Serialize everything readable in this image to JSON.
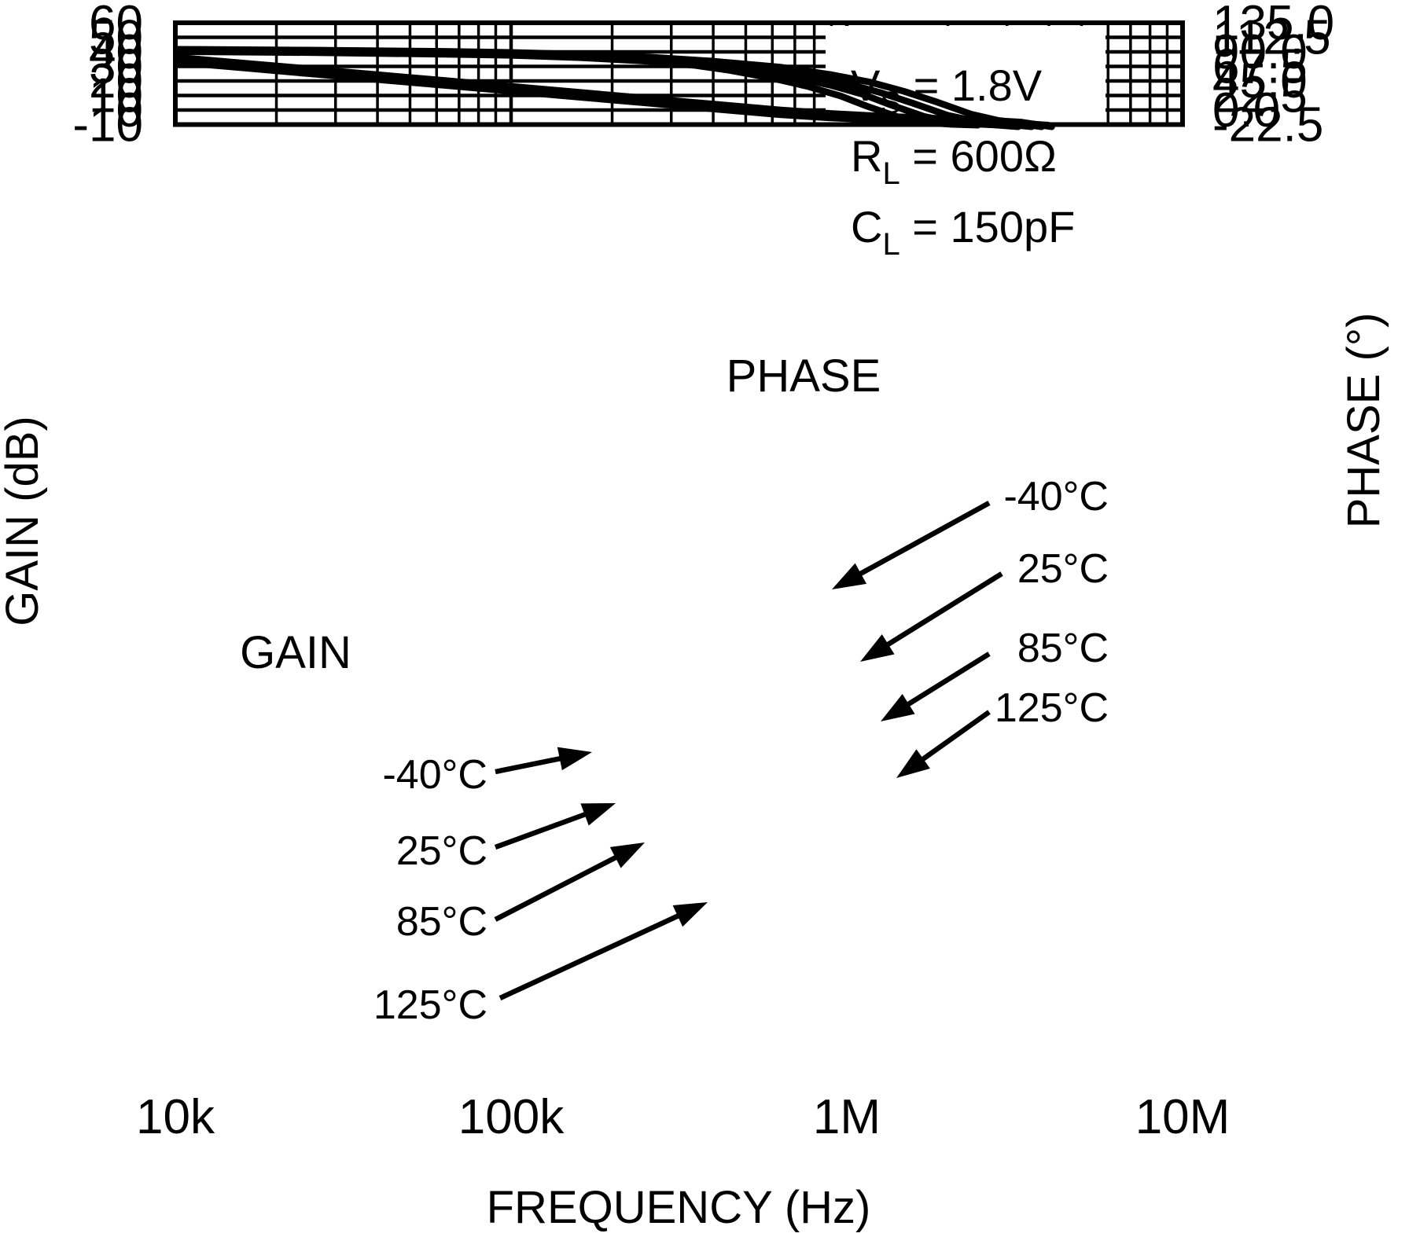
{
  "chart_data": {
    "type": "line",
    "xlabel": "FREQUENCY (Hz)",
    "ylabel_left": "GAIN (dB)",
    "ylabel_right": "PHASE (°)",
    "x_scale": "log",
    "x_range_hz": [
      10000,
      10000000
    ],
    "x_tick_labels": [
      "10k",
      "100k",
      "1M",
      "10M"
    ],
    "x_tick_log10": [
      4,
      5,
      6,
      7
    ],
    "y_left_range": [
      -10,
      60
    ],
    "y_left_ticks": [
      60,
      50,
      40,
      30,
      20,
      10,
      0,
      -10
    ],
    "y_right_range": [
      -22.5,
      135.0
    ],
    "y_right_tick_labels": [
      "135.0",
      "112.5",
      "90.0",
      "67.5",
      "45.0",
      "22.5",
      "0.0",
      "-22.5"
    ],
    "grid": "log-minor-and-major",
    "units": {
      "x": "log10(Hz)",
      "gain": "dB",
      "phase": "deg"
    },
    "series": [
      {
        "name": "GAIN -40°C",
        "axis": "gain",
        "temp": "-40°C",
        "points": [
          [
            4.0,
            36.3
          ],
          [
            4.2,
            32.3
          ],
          [
            4.4,
            28.3
          ],
          [
            4.6,
            24.3
          ],
          [
            4.8,
            20.3
          ],
          [
            5.0,
            16.3
          ],
          [
            5.2,
            12.2
          ],
          [
            5.4,
            8.2
          ],
          [
            5.6,
            4.1
          ],
          [
            5.8,
            0.1
          ],
          [
            5.95,
            -2.4
          ],
          [
            6.1,
            -4.2
          ],
          [
            6.25,
            -5.5
          ],
          [
            6.4,
            -6.8
          ],
          [
            6.52,
            -8.3
          ],
          [
            6.61,
            -11.5
          ]
        ]
      },
      {
        "name": "GAIN 25°C",
        "axis": "gain",
        "temp": "25°C",
        "points": [
          [
            4.0,
            35.3
          ],
          [
            4.2,
            31.3
          ],
          [
            4.4,
            27.3
          ],
          [
            4.6,
            23.3
          ],
          [
            4.8,
            19.3
          ],
          [
            5.0,
            15.3
          ],
          [
            5.2,
            11.2
          ],
          [
            5.4,
            7.2
          ],
          [
            5.6,
            3.1
          ],
          [
            5.8,
            -0.9
          ],
          [
            5.95,
            -3.3
          ],
          [
            6.1,
            -5.0
          ],
          [
            6.25,
            -6.2
          ],
          [
            6.4,
            -7.5
          ],
          [
            6.5,
            -9.0
          ],
          [
            6.58,
            -11.5
          ]
        ]
      },
      {
        "name": "GAIN 85°C",
        "axis": "gain",
        "temp": "85°C",
        "points": [
          [
            4.0,
            34.2
          ],
          [
            4.2,
            30.2
          ],
          [
            4.4,
            26.2
          ],
          [
            4.6,
            22.2
          ],
          [
            4.8,
            18.2
          ],
          [
            5.0,
            14.2
          ],
          [
            5.2,
            10.1
          ],
          [
            5.4,
            6.1
          ],
          [
            5.6,
            2.0
          ],
          [
            5.8,
            -2.0
          ],
          [
            5.95,
            -4.3
          ],
          [
            6.1,
            -5.9
          ],
          [
            6.25,
            -7.0
          ],
          [
            6.38,
            -8.2
          ],
          [
            6.47,
            -9.6
          ],
          [
            6.55,
            -11.5
          ]
        ]
      },
      {
        "name": "GAIN 125°C",
        "axis": "gain",
        "temp": "125°C",
        "points": [
          [
            4.0,
            33.0
          ],
          [
            4.2,
            29.0
          ],
          [
            4.4,
            25.0
          ],
          [
            4.6,
            21.0
          ],
          [
            4.8,
            17.0
          ],
          [
            5.0,
            13.0
          ],
          [
            5.2,
            8.9
          ],
          [
            5.4,
            4.9
          ],
          [
            5.6,
            0.8
          ],
          [
            5.8,
            -3.2
          ],
          [
            5.95,
            -5.4
          ],
          [
            6.1,
            -6.9
          ],
          [
            6.25,
            -7.9
          ],
          [
            6.35,
            -8.9
          ],
          [
            6.44,
            -10.2
          ],
          [
            6.51,
            -11.5
          ]
        ]
      },
      {
        "name": "PHASE -40°C",
        "axis": "phase",
        "temp": "-40°C",
        "points": [
          [
            4.0,
            94.0
          ],
          [
            4.4,
            92.7
          ],
          [
            4.8,
            90.7
          ],
          [
            5.0,
            89.2
          ],
          [
            5.2,
            86.4
          ],
          [
            5.4,
            82.2
          ],
          [
            5.6,
            75.6
          ],
          [
            5.8,
            66.5
          ],
          [
            5.95,
            55.0
          ],
          [
            6.07,
            43.0
          ],
          [
            6.17,
            29.0
          ],
          [
            6.27,
            12.0
          ],
          [
            6.37,
            -6.5
          ],
          [
            6.45,
            -16.0
          ],
          [
            6.52,
            -20.5
          ],
          [
            6.6,
            -23.5
          ]
        ]
      },
      {
        "name": "PHASE 25°C",
        "axis": "phase",
        "temp": "25°C",
        "points": [
          [
            4.0,
            92.8
          ],
          [
            4.4,
            91.5
          ],
          [
            4.8,
            89.5
          ],
          [
            5.0,
            88.0
          ],
          [
            5.2,
            85.0
          ],
          [
            5.4,
            80.5
          ],
          [
            5.6,
            73.5
          ],
          [
            5.75,
            65.0
          ],
          [
            5.9,
            52.0
          ],
          [
            6.0,
            41.0
          ],
          [
            6.1,
            27.0
          ],
          [
            6.2,
            10.0
          ],
          [
            6.3,
            -8.0
          ],
          [
            6.38,
            -17.0
          ],
          [
            6.45,
            -21.0
          ],
          [
            6.53,
            -23.5
          ]
        ]
      },
      {
        "name": "PHASE 85°C",
        "axis": "phase",
        "temp": "85°C",
        "points": [
          [
            4.0,
            91.6
          ],
          [
            4.4,
            90.2
          ],
          [
            4.8,
            88.0
          ],
          [
            5.0,
            86.4
          ],
          [
            5.2,
            83.2
          ],
          [
            5.4,
            78.3
          ],
          [
            5.6,
            70.6
          ],
          [
            5.72,
            62.5
          ],
          [
            5.85,
            50.0
          ],
          [
            5.95,
            38.5
          ],
          [
            6.05,
            24.0
          ],
          [
            6.13,
            8.0
          ],
          [
            6.23,
            -10.0
          ],
          [
            6.31,
            -18.5
          ],
          [
            6.38,
            -21.5
          ],
          [
            6.46,
            -23.5
          ]
        ]
      },
      {
        "name": "PHASE 125°C",
        "axis": "phase",
        "temp": "125°C",
        "points": [
          [
            4.0,
            90.4
          ],
          [
            4.4,
            88.9
          ],
          [
            4.8,
            86.4
          ],
          [
            5.0,
            84.6
          ],
          [
            5.2,
            81.2
          ],
          [
            5.4,
            75.8
          ],
          [
            5.55,
            69.0
          ],
          [
            5.65,
            61.5
          ],
          [
            5.78,
            49.0
          ],
          [
            5.88,
            37.0
          ],
          [
            5.98,
            22.0
          ],
          [
            6.06,
            6.0
          ],
          [
            6.16,
            -12.0
          ],
          [
            6.24,
            -19.5
          ],
          [
            6.31,
            -22.0
          ],
          [
            6.39,
            -23.5
          ]
        ]
      }
    ],
    "colors": {
      "foreground": "#000000",
      "background": "#ffffff"
    }
  },
  "conditions": [
    {
      "sym": "V",
      "sub": "S",
      "rest": " = 1.8V"
    },
    {
      "sym": "R",
      "sub": "L",
      "rest": " = 600Ω"
    },
    {
      "sym": "C",
      "sub": "L",
      "rest": " = 150pF"
    }
  ],
  "annotations": {
    "phase_curve_label": "PHASE",
    "gain_curve_label": "GAIN",
    "gain_temp_labels": [
      "-40°C",
      "25°C",
      "85°C",
      "125°C"
    ],
    "phase_temp_labels": [
      "-40°C",
      "25°C",
      "85°C",
      "125°C"
    ]
  }
}
